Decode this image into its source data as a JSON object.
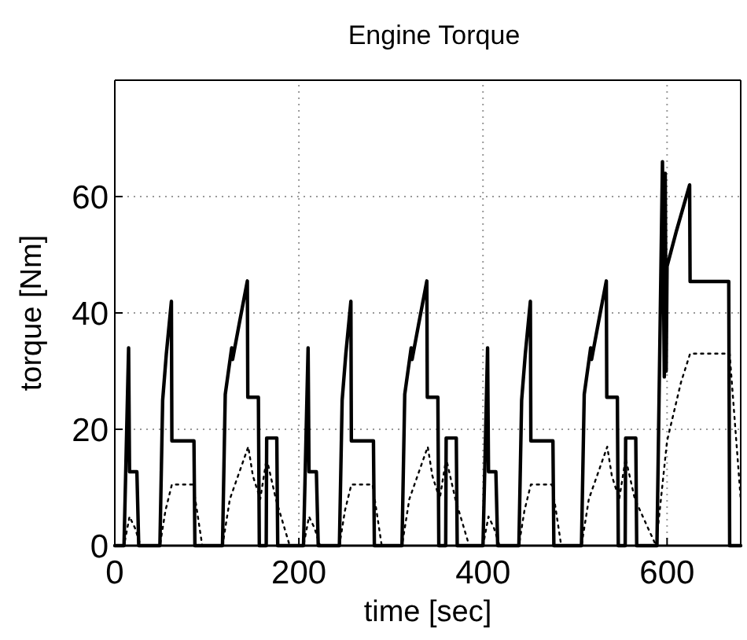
{
  "chart_data": {
    "type": "line",
    "title": "Engine Torque",
    "xlabel": "time [sec]",
    "ylabel": "torque [Nm]",
    "xlim": [
      0,
      680
    ],
    "ylim": [
      0,
      80
    ],
    "xticks": [
      0,
      200,
      400,
      600
    ],
    "yticks": [
      0,
      20,
      40,
      60
    ],
    "grid": true,
    "series": [
      {
        "color": "#000000",
        "line_style": "solid",
        "x": [
          0,
          10,
          15,
          16,
          24,
          26,
          49,
          52,
          56,
          61.5,
          62,
          86,
          87,
          117,
          120,
          127,
          128,
          135,
          144,
          144.5,
          156,
          157,
          164.5,
          165,
          176,
          177,
          205,
          210,
          211,
          219,
          221,
          244,
          247,
          251,
          256.5,
          257,
          281,
          282,
          312,
          315,
          322,
          323,
          330,
          339,
          339.5,
          351,
          352,
          359.5,
          360,
          371,
          372,
          400,
          405,
          406,
          414,
          416,
          439,
          442,
          446,
          451.5,
          452,
          476,
          477,
          507,
          510,
          517,
          518,
          525,
          534,
          534.5,
          546,
          547,
          554.5,
          555,
          566,
          567,
          589,
          595,
          597,
          598,
          599,
          600,
          610,
          624.5,
          625,
          667,
          668,
          680
        ],
        "values": [
          0,
          0,
          34,
          12.7,
          12.7,
          0,
          0,
          25,
          33,
          42,
          18,
          18,
          0,
          0,
          26,
          34,
          32,
          38,
          45.5,
          25.5,
          25.5,
          0,
          0,
          18.5,
          18.5,
          0,
          0,
          34,
          12.7,
          12.7,
          0,
          0,
          25,
          33,
          42,
          18,
          18,
          0,
          0,
          26,
          34,
          32,
          38,
          45.5,
          25.5,
          25.5,
          0,
          0,
          18.5,
          18.5,
          0,
          0,
          34,
          12.7,
          12.7,
          0,
          0,
          25,
          33,
          42,
          18,
          18,
          0,
          0,
          26,
          34,
          32,
          38,
          45.5,
          25.5,
          25.5,
          0,
          0,
          18.5,
          18.5,
          0,
          0,
          66,
          29,
          64,
          30,
          48,
          54,
          62,
          45.4,
          45.4,
          0,
          0
        ]
      },
      {
        "color": "#000000",
        "line_style": "dotted",
        "x": [
          0,
          10,
          16,
          22,
          28,
          49,
          55,
          62,
          85,
          95,
          117,
          125,
          145,
          150,
          158,
          165,
          175,
          190,
          205,
          211,
          217,
          223,
          244,
          250,
          257,
          280,
          290,
          312,
          320,
          340,
          345,
          353,
          360,
          370,
          385,
          400,
          406,
          412,
          418,
          439,
          445,
          452,
          475,
          485,
          507,
          515,
          535,
          540,
          548,
          555,
          565,
          588,
          600,
          615,
          625,
          668,
          680
        ],
        "values": [
          0,
          0,
          5,
          3,
          0,
          0,
          6,
          10.5,
          10.5,
          0,
          0,
          8,
          17,
          12,
          8,
          15,
          8,
          0,
          0,
          5,
          3,
          0,
          0,
          6,
          10.5,
          10.5,
          0,
          0,
          8,
          17,
          12,
          8,
          15,
          8,
          0,
          0,
          5,
          3,
          0,
          0,
          6,
          10.5,
          10.5,
          0,
          0,
          8,
          17,
          12,
          8,
          15,
          8,
          0,
          18,
          28,
          33,
          33,
          8
        ]
      }
    ]
  }
}
